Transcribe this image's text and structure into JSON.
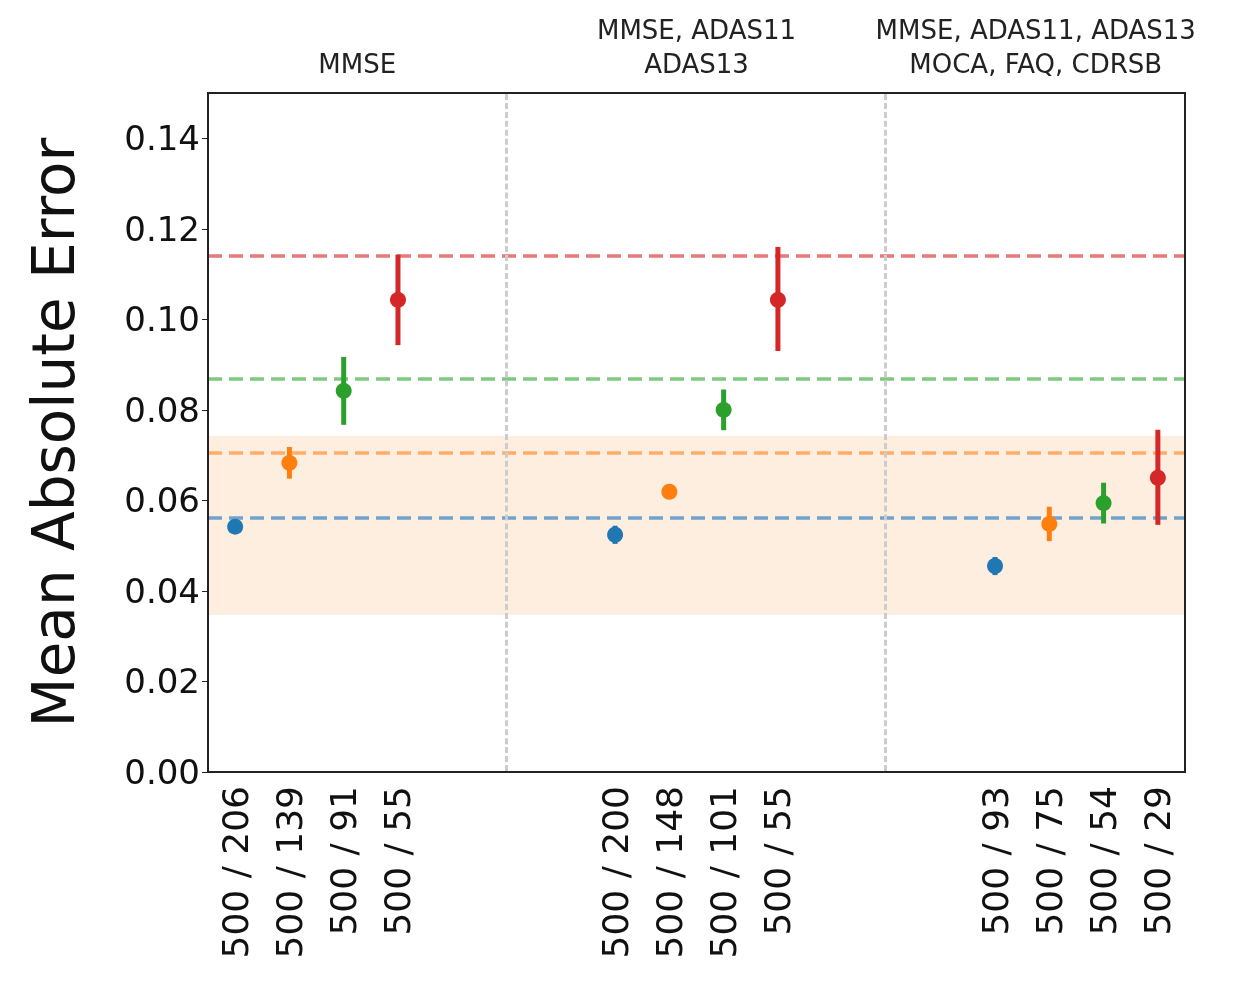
{
  "chart_data": {
    "type": "scatter",
    "ylabel": "Mean Absolute Error",
    "annotations": [
      "MMSE",
      "MMSE, ADAS11\nADAS13",
      "MMSE, ADAS11, ADAS13\nMOCA, FAQ, CDRSB"
    ],
    "categories": [
      "500 / 206",
      "500 / 139",
      "500 / 91",
      "500 / 55",
      null,
      null,
      null,
      "500 / 200",
      "500 / 148",
      "500 / 101",
      "500 / 55",
      null,
      null,
      null,
      "500 / 93",
      "500 / 75",
      "500 / 54",
      "500 / 29"
    ],
    "ylim": [
      0,
      0.15
    ],
    "yticks": [
      {
        "value": 0,
        "label": "0.00"
      },
      {
        "value": 0.02,
        "label": "0.02"
      },
      {
        "value": 0.04,
        "label": "0.04"
      },
      {
        "value": 0.06,
        "label": "0.06"
      },
      {
        "value": 0.08,
        "label": "0.08"
      },
      {
        "value": 0.1,
        "label": "0.10"
      },
      {
        "value": 0.12,
        "label": "0.12"
      },
      {
        "value": 0.14,
        "label": "0.14"
      }
    ],
    "marker": "circle",
    "series": [
      {
        "color": "#1f77b4",
        "values": [
          0.0542,
          null,
          null,
          null,
          null,
          null,
          null,
          0.0524,
          null,
          null,
          null,
          null,
          null,
          null,
          0.0455,
          null,
          null,
          null
        ],
        "errors": [
          0.0015,
          null,
          null,
          null,
          null,
          null,
          null,
          0.002,
          null,
          null,
          null,
          null,
          null,
          null,
          0.002,
          null,
          null,
          null
        ]
      },
      {
        "color": "#ff7f0e",
        "values": [
          null,
          0.0683,
          null,
          null,
          null,
          null,
          null,
          null,
          0.0619,
          null,
          null,
          null,
          null,
          null,
          null,
          0.0548,
          null,
          null
        ],
        "errors": [
          null,
          0.0035,
          null,
          null,
          null,
          null,
          null,
          null,
          0.0015,
          null,
          null,
          null,
          null,
          null,
          null,
          0.0038,
          null,
          null
        ]
      },
      {
        "color": "#2ca02c",
        "values": [
          null,
          null,
          0.0842,
          null,
          null,
          null,
          null,
          null,
          null,
          0.08,
          null,
          null,
          null,
          null,
          null,
          null,
          0.0594,
          null
        ],
        "errors": [
          null,
          null,
          0.0075,
          null,
          null,
          null,
          null,
          null,
          null,
          0.0045,
          null,
          null,
          null,
          null,
          null,
          null,
          0.0045,
          null
        ]
      },
      {
        "color": "#d62728",
        "values": [
          null,
          null,
          null,
          0.1043,
          null,
          null,
          null,
          null,
          null,
          null,
          0.1043,
          null,
          null,
          null,
          null,
          null,
          null,
          0.065
        ],
        "errors": [
          null,
          null,
          null,
          0.01,
          null,
          null,
          null,
          null,
          null,
          null,
          [
            0.093,
            0.116
          ],
          null,
          null,
          null,
          null,
          null,
          null,
          [
            0.0546,
            0.0756
          ]
        ]
      }
    ],
    "ref_lines": [
      {
        "axis": "y",
        "value": 0.114,
        "color": "#e8787a",
        "line_style": "dashed"
      },
      {
        "axis": "y",
        "value": 0.0869,
        "color": "#7fc97f",
        "line_style": "dashed"
      },
      {
        "axis": "y",
        "value": 0.0705,
        "color": "#ffae6a",
        "line_style": "dashed"
      },
      {
        "axis": "y",
        "value": 0.0561,
        "color": "#6fa3cc",
        "line_style": "dashed"
      }
    ],
    "bands": [
      {
        "axis": "y",
        "from": 0.0347,
        "to": 0.0743,
        "color": "#fdeee0"
      }
    ]
  }
}
